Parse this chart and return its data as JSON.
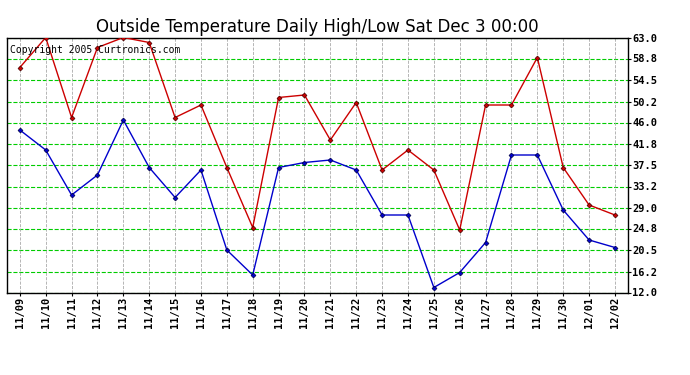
{
  "title": "Outside Temperature Daily High/Low Sat Dec 3 00:00",
  "copyright": "Copyright 2005 Curtronics.com",
  "x_labels": [
    "11/09",
    "11/10",
    "11/11",
    "11/12",
    "11/13",
    "11/14",
    "11/15",
    "11/16",
    "11/17",
    "11/18",
    "11/19",
    "11/20",
    "11/21",
    "11/22",
    "11/23",
    "11/24",
    "11/25",
    "11/26",
    "11/27",
    "11/28",
    "11/29",
    "11/30",
    "12/01",
    "12/02"
  ],
  "high_temps": [
    57.0,
    63.0,
    47.0,
    61.0,
    63.0,
    62.0,
    47.0,
    49.5,
    37.0,
    25.0,
    51.0,
    51.5,
    42.5,
    50.0,
    36.5,
    40.5,
    36.5,
    24.5,
    49.5,
    49.5,
    59.0,
    37.0,
    29.5,
    27.5
  ],
  "low_temps": [
    44.5,
    40.5,
    31.5,
    35.5,
    46.5,
    37.0,
    31.0,
    36.5,
    20.5,
    15.5,
    37.0,
    38.0,
    38.5,
    36.5,
    27.5,
    27.5,
    13.0,
    16.0,
    22.0,
    39.5,
    39.5,
    28.5,
    22.5,
    21.0
  ],
  "y_ticks": [
    12.0,
    16.2,
    20.5,
    24.8,
    29.0,
    33.2,
    37.5,
    41.8,
    46.0,
    50.2,
    54.5,
    58.8,
    63.0
  ],
  "ylim": [
    12.0,
    63.0
  ],
  "high_color": "#cc0000",
  "low_color": "#0000cc",
  "hgrid_color": "#00cc00",
  "vgrid_color": "#aaaaaa",
  "background_color": "#ffffff",
  "title_fontsize": 12,
  "copyright_fontsize": 7,
  "tick_fontsize": 7.5
}
